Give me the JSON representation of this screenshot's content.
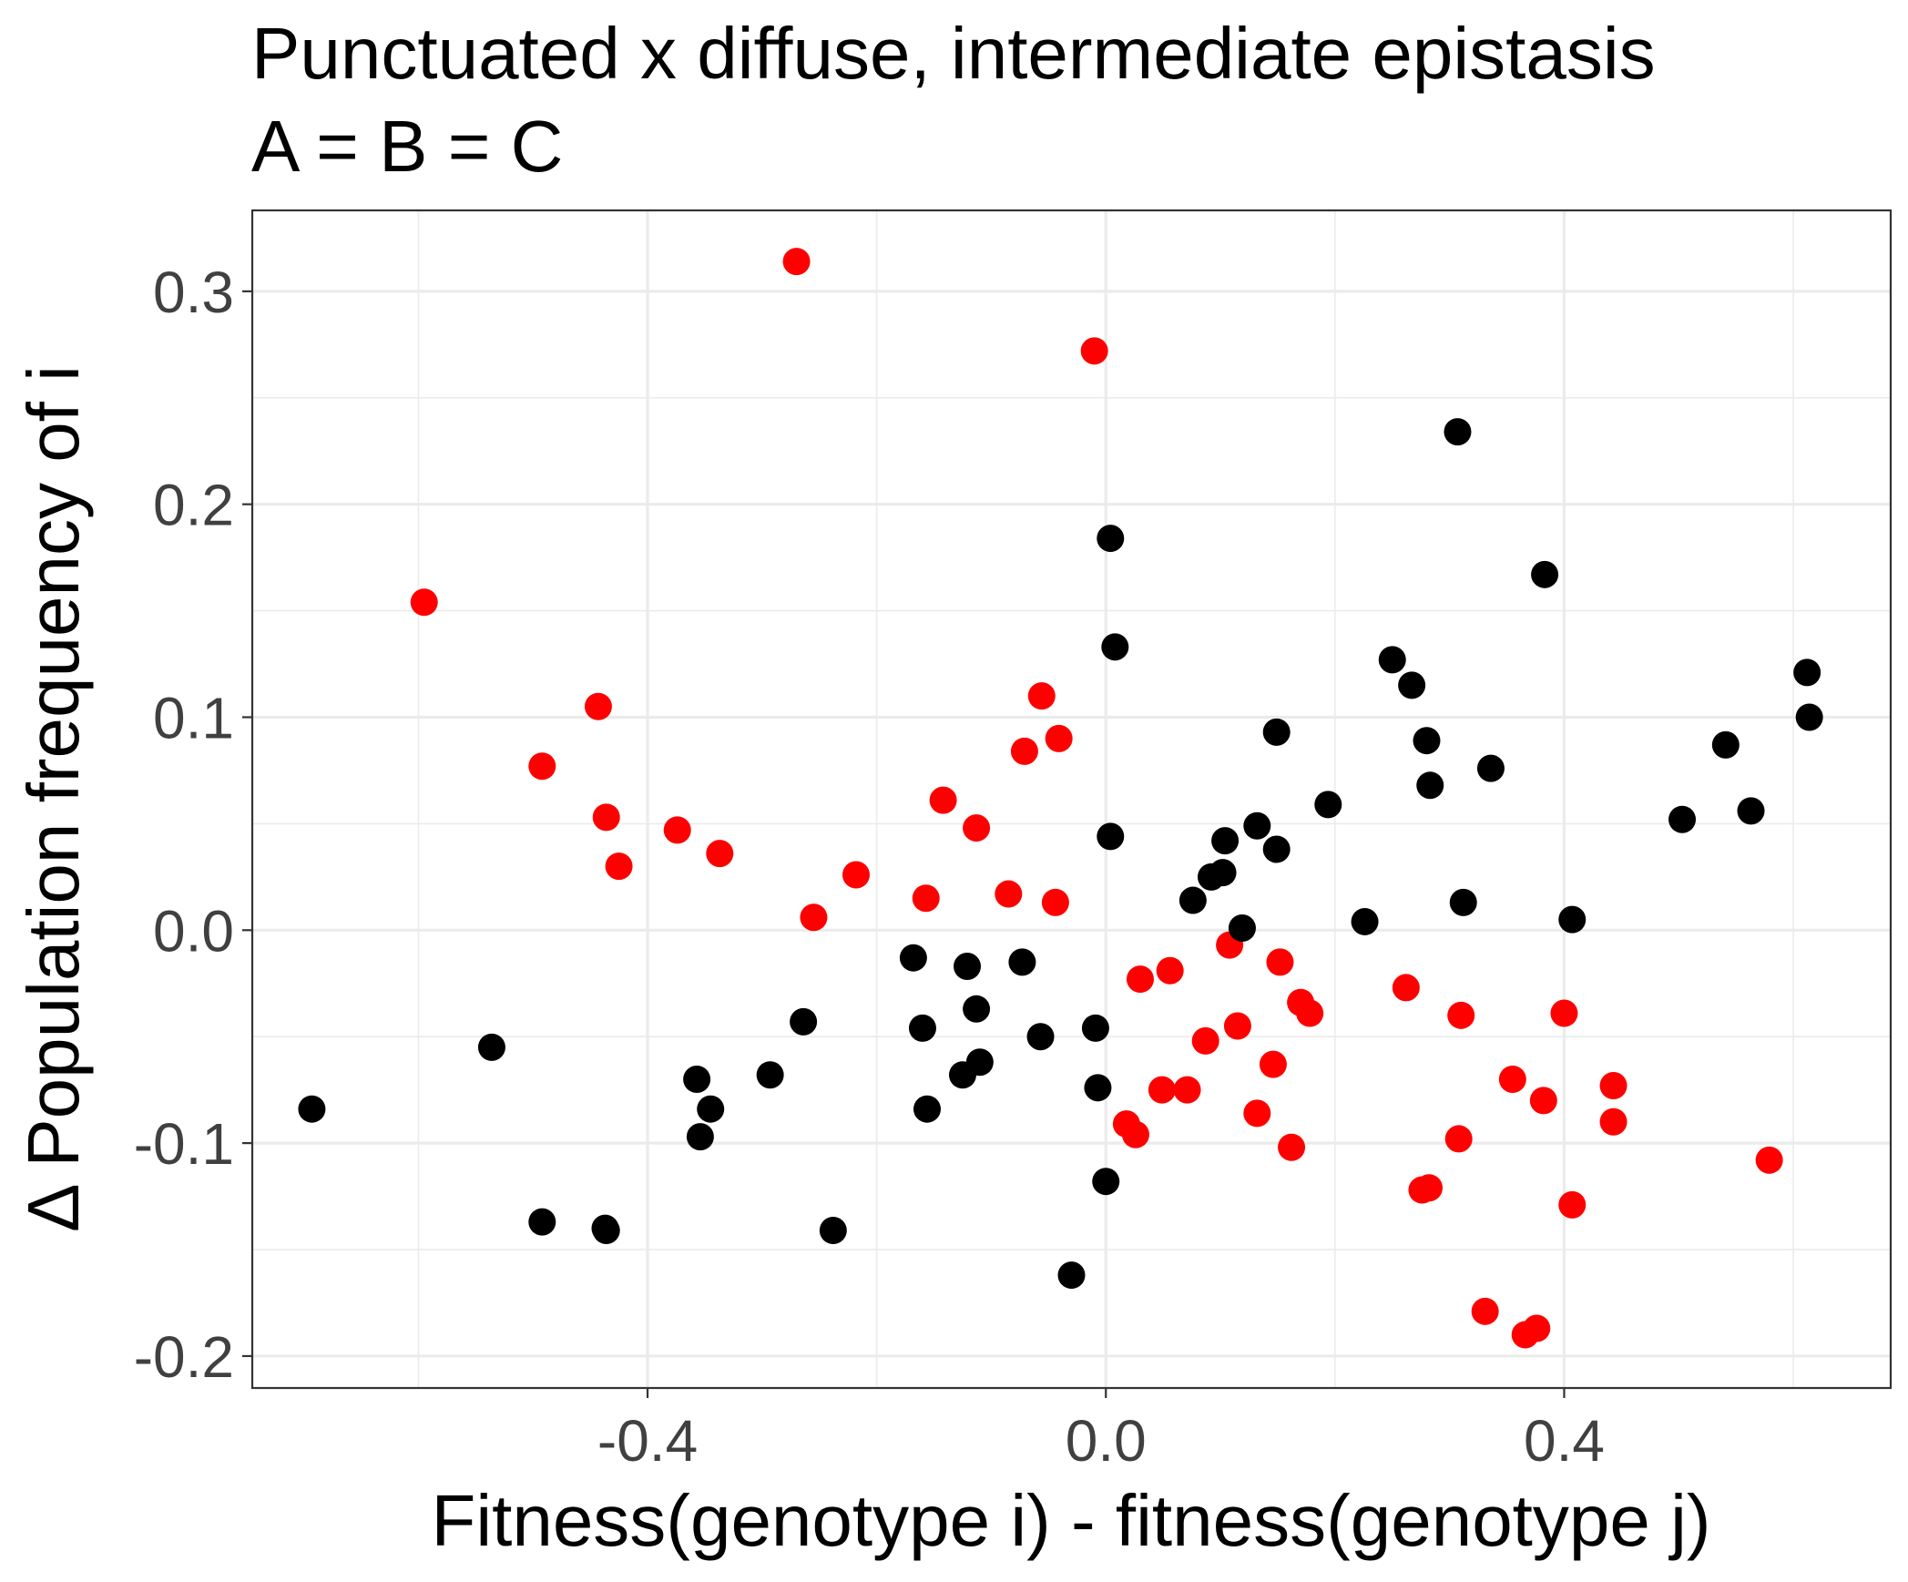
{
  "chart_data": {
    "type": "scatter",
    "title": "Punctuated x diffuse, intermediate epistasis",
    "subtitle": "A = B = C",
    "xlabel": "Fitness(genotype i) - fitness(genotype j)",
    "ylabel": "Δ Population frequency of i",
    "xlim": [
      -0.745,
      0.685
    ],
    "ylim": [
      -0.215,
      0.338
    ],
    "x_ticks": [
      -0.4,
      0.0,
      0.4
    ],
    "x_tick_labels": [
      "-0.4",
      "0.0",
      "0.4"
    ],
    "y_ticks": [
      -0.2,
      -0.1,
      0.0,
      0.1,
      0.2,
      0.3
    ],
    "y_tick_labels": [
      "-0.2",
      "-0.1",
      "0.0",
      "0.1",
      "0.2",
      "0.3"
    ],
    "grid": true,
    "legend": "none",
    "series": [
      {
        "name": "red",
        "color": "#FF0000",
        "points": [
          [
            -0.27,
            0.314
          ],
          [
            -0.01,
            0.272
          ],
          [
            -0.595,
            0.154
          ],
          [
            -0.443,
            0.105
          ],
          [
            -0.492,
            0.077
          ],
          [
            -0.436,
            0.053
          ],
          [
            -0.425,
            0.03
          ],
          [
            -0.374,
            0.047
          ],
          [
            -0.337,
            0.036
          ],
          [
            -0.255,
            0.006
          ],
          [
            -0.218,
            0.026
          ],
          [
            -0.157,
            0.015
          ],
          [
            -0.142,
            0.061
          ],
          [
            -0.113,
            0.048
          ],
          [
            -0.085,
            0.017
          ],
          [
            -0.071,
            0.084
          ],
          [
            -0.056,
            0.11
          ],
          [
            -0.041,
            0.09
          ],
          [
            -0.044,
            0.013
          ],
          [
            0.108,
            -0.007
          ],
          [
            0.03,
            -0.023
          ],
          [
            0.056,
            -0.019
          ],
          [
            0.152,
            -0.015
          ],
          [
            0.17,
            -0.034
          ],
          [
            0.178,
            -0.039
          ],
          [
            0.115,
            -0.045
          ],
          [
            0.087,
            -0.052
          ],
          [
            0.146,
            -0.063
          ],
          [
            0.049,
            -0.075
          ],
          [
            0.071,
            -0.075
          ],
          [
            0.132,
            -0.086
          ],
          [
            0.018,
            -0.091
          ],
          [
            0.026,
            -0.096
          ],
          [
            0.162,
            -0.102
          ],
          [
            0.262,
            -0.027
          ],
          [
            0.31,
            -0.04
          ],
          [
            0.4,
            -0.039
          ],
          [
            0.355,
            -0.07
          ],
          [
            0.382,
            -0.08
          ],
          [
            0.443,
            -0.073
          ],
          [
            0.443,
            -0.09
          ],
          [
            0.308,
            -0.098
          ],
          [
            0.579,
            -0.108
          ],
          [
            0.276,
            -0.122
          ],
          [
            0.282,
            -0.121
          ],
          [
            0.407,
            -0.129
          ],
          [
            0.331,
            -0.179
          ],
          [
            0.366,
            -0.19
          ],
          [
            0.376,
            -0.187
          ]
        ]
      },
      {
        "name": "black",
        "color": "#000000",
        "points": [
          [
            -0.693,
            -0.084
          ],
          [
            -0.536,
            -0.055
          ],
          [
            -0.492,
            -0.137
          ],
          [
            -0.437,
            -0.14
          ],
          [
            -0.436,
            -0.141
          ],
          [
            -0.357,
            -0.07
          ],
          [
            -0.345,
            -0.084
          ],
          [
            -0.354,
            -0.097
          ],
          [
            -0.293,
            -0.068
          ],
          [
            -0.264,
            -0.043
          ],
          [
            -0.238,
            -0.141
          ],
          [
            -0.168,
            -0.013
          ],
          [
            -0.16,
            -0.046
          ],
          [
            -0.156,
            -0.084
          ],
          [
            -0.121,
            -0.017
          ],
          [
            -0.125,
            -0.068
          ],
          [
            -0.113,
            -0.037
          ],
          [
            -0.11,
            -0.062
          ],
          [
            -0.073,
            -0.015
          ],
          [
            -0.057,
            -0.05
          ],
          [
            -0.03,
            -0.162
          ],
          [
            -0.009,
            -0.046
          ],
          [
            -0.007,
            -0.074
          ],
          [
            0.0,
            -0.118
          ],
          [
            0.004,
            0.184
          ],
          [
            0.008,
            0.133
          ],
          [
            0.004,
            0.044
          ],
          [
            0.076,
            0.014
          ],
          [
            0.092,
            0.025
          ],
          [
            0.102,
            0.027
          ],
          [
            0.104,
            0.042
          ],
          [
            0.119,
            0.001
          ],
          [
            0.132,
            0.049
          ],
          [
            0.149,
            0.038
          ],
          [
            0.149,
            0.093
          ],
          [
            0.194,
            0.059
          ],
          [
            0.226,
            0.004
          ],
          [
            0.25,
            0.127
          ],
          [
            0.267,
            0.115
          ],
          [
            0.28,
            0.089
          ],
          [
            0.283,
            0.068
          ],
          [
            0.307,
            0.234
          ],
          [
            0.312,
            0.013
          ],
          [
            0.336,
            0.076
          ],
          [
            0.383,
            0.167
          ],
          [
            0.407,
            0.005
          ],
          [
            0.503,
            0.052
          ],
          [
            0.541,
            0.087
          ],
          [
            0.563,
            0.056
          ],
          [
            0.612,
            0.121
          ],
          [
            0.614,
            0.1
          ]
        ]
      }
    ]
  }
}
